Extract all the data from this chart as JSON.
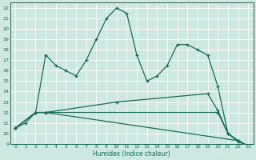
{
  "xlabel": "Humidex (Indice chaleur)",
  "bg_color": "#cce8e0",
  "grid_color": "#b0d8d0",
  "line_color": "#1a6b5a",
  "xlim": [
    -0.5,
    23.5
  ],
  "ylim": [
    9,
    22.5
  ],
  "xticks": [
    0,
    1,
    2,
    3,
    4,
    5,
    6,
    7,
    8,
    9,
    10,
    11,
    12,
    13,
    14,
    15,
    16,
    17,
    18,
    19,
    20,
    21,
    22,
    23
  ],
  "yticks": [
    9,
    10,
    11,
    12,
    13,
    14,
    15,
    16,
    17,
    18,
    19,
    20,
    21,
    22
  ],
  "line1_x": [
    0,
    1,
    2,
    3,
    4,
    5,
    6,
    7,
    8,
    9,
    10,
    11,
    12,
    13,
    14,
    15,
    16,
    17,
    18,
    19,
    20,
    21,
    22,
    23
  ],
  "line1_y": [
    10.5,
    11,
    12,
    17.5,
    16.5,
    16,
    15.5,
    17,
    19,
    21,
    22,
    21.5,
    17.5,
    15,
    15.5,
    16.5,
    18.5,
    18.5,
    18,
    17.5,
    14.5,
    10,
    9.2,
    8.8
  ],
  "line2_x": [
    0,
    2,
    3,
    22,
    23
  ],
  "line2_y": [
    10.5,
    12,
    12,
    9.3,
    8.8
  ],
  "line3_x": [
    0,
    2,
    3,
    20,
    21,
    22,
    23
  ],
  "line3_y": [
    10.5,
    12,
    12,
    12,
    10,
    9.3,
    8.8
  ],
  "line4_x": [
    0,
    2,
    3,
    10,
    19,
    20,
    21,
    22,
    23
  ],
  "line4_y": [
    10.5,
    12,
    12,
    13,
    13.8,
    12.2,
    10,
    9.3,
    8.8
  ]
}
